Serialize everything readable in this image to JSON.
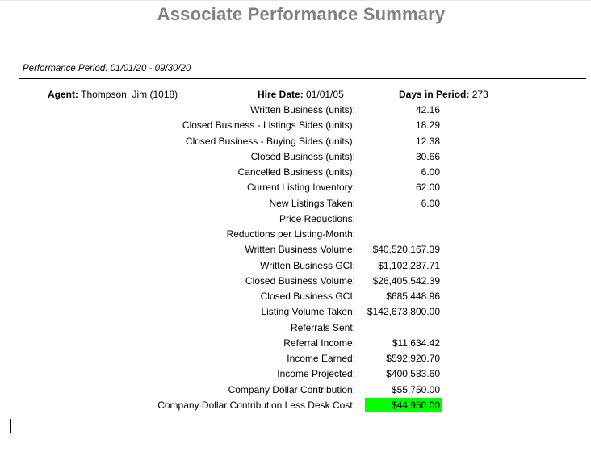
{
  "report": {
    "title": "Associate Performance Summary",
    "period_text": "Performance Period: 01/01/20 - 09/30/20",
    "agent_label": "Agent:",
    "agent_value": "Thompson, Jim (1018)",
    "hire_label": "Hire Date:",
    "hire_value": "01/01/05",
    "days_label": "Days in Period:",
    "days_value": "273"
  },
  "metrics": [
    {
      "label": "Written Business (units):",
      "value": "42.16"
    },
    {
      "label": "Closed Business - Listings Sides (units):",
      "value": "18.29"
    },
    {
      "label": "Closed Business - Buying Sides (units):",
      "value": "12.38"
    },
    {
      "label": "Closed Business (units):",
      "value": "30.66"
    },
    {
      "label": "Cancelled Business (units):",
      "value": "6.00"
    },
    {
      "label": "Current Listing Inventory:",
      "value": "62.00"
    },
    {
      "label": "New Listings Taken:",
      "value": "6.00"
    },
    {
      "label": "Price Reductions:",
      "value": ""
    },
    {
      "label": "Reductions per Listing-Month:",
      "value": ""
    },
    {
      "label": "Written Business Volume:",
      "value": "$40,520,167.39"
    },
    {
      "label": "Written Business GCI:",
      "value": "$1,102,287.71"
    },
    {
      "label": "Closed Business Volume:",
      "value": "$26,405,542.39"
    },
    {
      "label": "Closed Business GCI:",
      "value": "$685,448.96"
    },
    {
      "label": "Listing Volume Taken:",
      "value": "$142,673,800.00"
    },
    {
      "label": "Referrals Sent:",
      "value": ""
    },
    {
      "label": "Referral Income:",
      "value": "$11,634.42"
    },
    {
      "label": "Income Earned:",
      "value": "$592,920.70"
    },
    {
      "label": "Income Projected:",
      "value": "$400,583.60"
    },
    {
      "label": "Company Dollar Contribution:",
      "value": "$55,750.00"
    },
    {
      "label": "Company Dollar Contribution Less Desk Cost:",
      "value": "$44,950.00"
    }
  ],
  "colors": {
    "title": "#808080",
    "highlight": "#00ff00"
  }
}
